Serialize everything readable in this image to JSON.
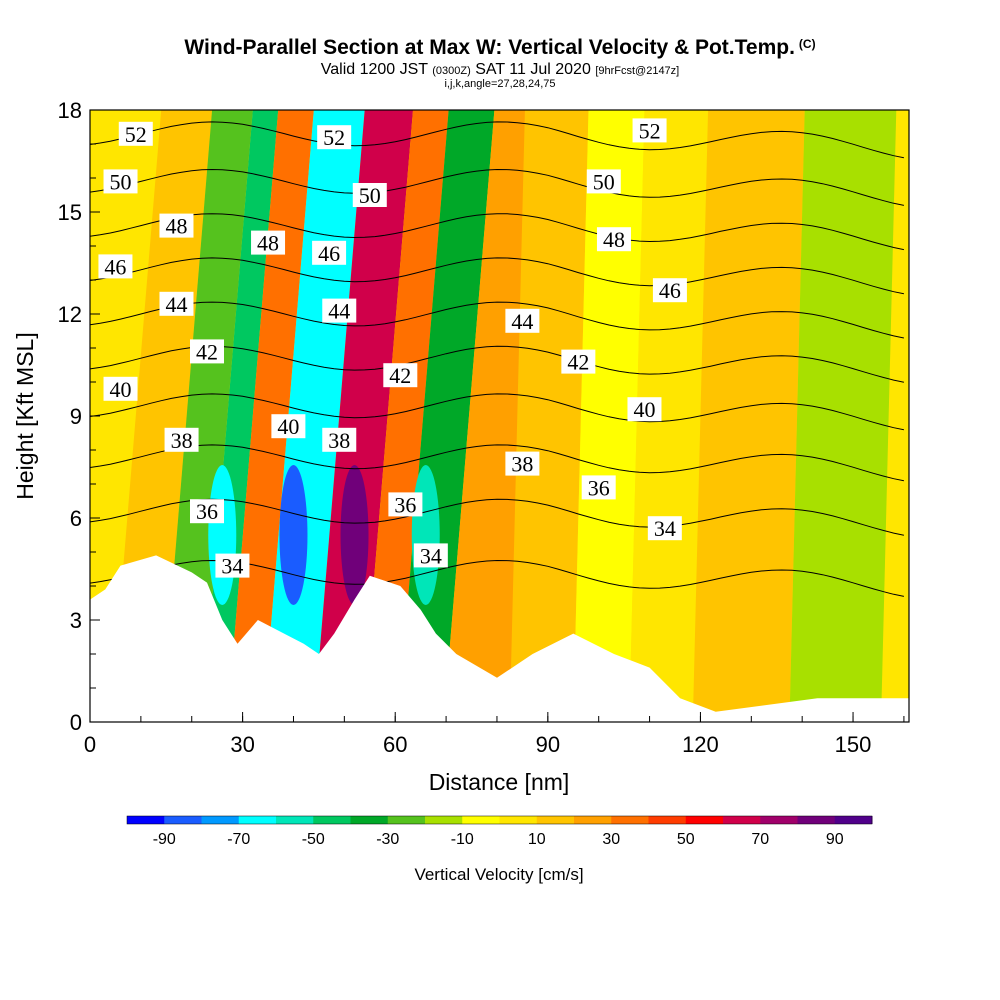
{
  "header": {
    "title": "Wind-Parallel Section at Max W: Vertical Velocity & Pot.Temp.",
    "copyright": "(C)",
    "valid_prefix": "Valid 1200 JST",
    "valid_utc": "(0300Z)",
    "valid_date": "SAT 11 Jul 2020",
    "forecast": "[9hrFcst@2147z]",
    "indices": "i,j,k,angle=27,28,24,75"
  },
  "chart_data": {
    "type": "heatmap",
    "title": "Wind-Parallel Section at Max W: Vertical Velocity & Pot.Temp.",
    "xlabel": "Distance [nm]",
    "ylabel": "Height [Kft MSL]",
    "xlim": [
      0,
      161
    ],
    "ylim": [
      0,
      18
    ],
    "x_ticks": [
      0,
      30,
      60,
      90,
      120,
      150
    ],
    "y_ticks": [
      0,
      3,
      6,
      9,
      12,
      15,
      18
    ],
    "colorbar": {
      "title": "Vertical Velocity [cm/s]",
      "levels": [
        -100,
        -90,
        -80,
        -70,
        -60,
        -50,
        -40,
        -30,
        -20,
        -10,
        0,
        10,
        20,
        30,
        40,
        50,
        60,
        70,
        80,
        90,
        100
      ],
      "tick_labels": [
        "-90",
        "-70",
        "-50",
        "-30",
        "-10",
        "10",
        "30",
        "50",
        "70",
        "90"
      ],
      "colors": [
        "#0000ff",
        "#1a5cff",
        "#0099ff",
        "#00ffff",
        "#00e6b8",
        "#00c860",
        "#00a828",
        "#55c21e",
        "#a8e000",
        "#ffff00",
        "#ffe600",
        "#ffc400",
        "#ffa000",
        "#ff7000",
        "#ff3c00",
        "#ff0000",
        "#d0004a",
        "#a0006a",
        "#70007a",
        "#50008a"
      ]
    },
    "velocity_bands": [
      {
        "x_center": 8,
        "value": 10
      },
      {
        "x_center": 20,
        "value": -30
      },
      {
        "x_center": 24,
        "value": -50
      },
      {
        "x_center": 30,
        "value": 30
      },
      {
        "x_center": 38,
        "value": -70
      },
      {
        "x_center": 50,
        "value": 60
      },
      {
        "x_center": 57,
        "value": 30
      },
      {
        "x_center": 64,
        "value": -40
      },
      {
        "x_center": 75,
        "value": 20
      },
      {
        "x_center": 90,
        "value": 10
      },
      {
        "x_center": 100,
        "value": -10
      },
      {
        "x_center": 112,
        "value": 0
      },
      {
        "x_center": 125,
        "value": 10
      },
      {
        "x_center": 150,
        "value": -15
      }
    ],
    "theta_contours": [
      {
        "label": "34",
        "height": 4.4
      },
      {
        "label": "36",
        "height": 6.2
      },
      {
        "label": "38",
        "height": 7.8
      },
      {
        "label": "40",
        "height": 9.3
      },
      {
        "label": "42",
        "height": 10.7
      },
      {
        "label": "44",
        "height": 12.0
      },
      {
        "label": "46",
        "height": 13.3
      },
      {
        "label": "48",
        "height": 14.6
      },
      {
        "label": "50",
        "height": 15.9
      },
      {
        "label": "52",
        "height": 17.3
      }
    ],
    "contour_labels": [
      {
        "text": "52",
        "x": 9,
        "y": 17.3
      },
      {
        "text": "52",
        "x": 48,
        "y": 17.2
      },
      {
        "text": "52",
        "x": 110,
        "y": 17.4
      },
      {
        "text": "50",
        "x": 6,
        "y": 15.9
      },
      {
        "text": "50",
        "x": 55,
        "y": 15.5
      },
      {
        "text": "50",
        "x": 101,
        "y": 15.9
      },
      {
        "text": "48",
        "x": 17,
        "y": 14.6
      },
      {
        "text": "48",
        "x": 35,
        "y": 14.1
      },
      {
        "text": "48",
        "x": 103,
        "y": 14.2
      },
      {
        "text": "46",
        "x": 5,
        "y": 13.4
      },
      {
        "text": "46",
        "x": 47,
        "y": 13.8
      },
      {
        "text": "46",
        "x": 114,
        "y": 12.7
      },
      {
        "text": "44",
        "x": 17,
        "y": 12.3
      },
      {
        "text": "44",
        "x": 49,
        "y": 12.1
      },
      {
        "text": "44",
        "x": 85,
        "y": 11.8
      },
      {
        "text": "42",
        "x": 23,
        "y": 10.9
      },
      {
        "text": "42",
        "x": 61,
        "y": 10.2
      },
      {
        "text": "42",
        "x": 96,
        "y": 10.6
      },
      {
        "text": "40",
        "x": 6,
        "y": 9.8
      },
      {
        "text": "40",
        "x": 39,
        "y": 8.7
      },
      {
        "text": "40",
        "x": 109,
        "y": 9.2
      },
      {
        "text": "38",
        "x": 18,
        "y": 8.3
      },
      {
        "text": "38",
        "x": 49,
        "y": 8.3
      },
      {
        "text": "38",
        "x": 85,
        "y": 7.6
      },
      {
        "text": "36",
        "x": 23,
        "y": 6.2
      },
      {
        "text": "36",
        "x": 62,
        "y": 6.4
      },
      {
        "text": "36",
        "x": 100,
        "y": 6.9
      },
      {
        "text": "34",
        "x": 28,
        "y": 4.6
      },
      {
        "text": "34",
        "x": 67,
        "y": 4.9
      },
      {
        "text": "34",
        "x": 113,
        "y": 5.7
      }
    ],
    "terrain": [
      {
        "x": 0,
        "y": 3.6
      },
      {
        "x": 3,
        "y": 3.9
      },
      {
        "x": 6,
        "y": 4.6
      },
      {
        "x": 13,
        "y": 4.9
      },
      {
        "x": 20,
        "y": 4.4
      },
      {
        "x": 23,
        "y": 4.1
      },
      {
        "x": 26,
        "y": 3.0
      },
      {
        "x": 29,
        "y": 2.3
      },
      {
        "x": 33,
        "y": 3.0
      },
      {
        "x": 42,
        "y": 2.3
      },
      {
        "x": 45,
        "y": 2.0
      },
      {
        "x": 48,
        "y": 2.6
      },
      {
        "x": 52,
        "y": 3.6
      },
      {
        "x": 55,
        "y": 4.3
      },
      {
        "x": 61,
        "y": 4.0
      },
      {
        "x": 65,
        "y": 3.3
      },
      {
        "x": 68,
        "y": 2.6
      },
      {
        "x": 72,
        "y": 2.0
      },
      {
        "x": 80,
        "y": 1.3
      },
      {
        "x": 87,
        "y": 2.0
      },
      {
        "x": 95,
        "y": 2.6
      },
      {
        "x": 103,
        "y": 2.0
      },
      {
        "x": 110,
        "y": 1.6
      },
      {
        "x": 116,
        "y": 0.7
      },
      {
        "x": 123,
        "y": 0.3
      },
      {
        "x": 143,
        "y": 0.7
      },
      {
        "x": 161,
        "y": 0.7
      }
    ]
  }
}
